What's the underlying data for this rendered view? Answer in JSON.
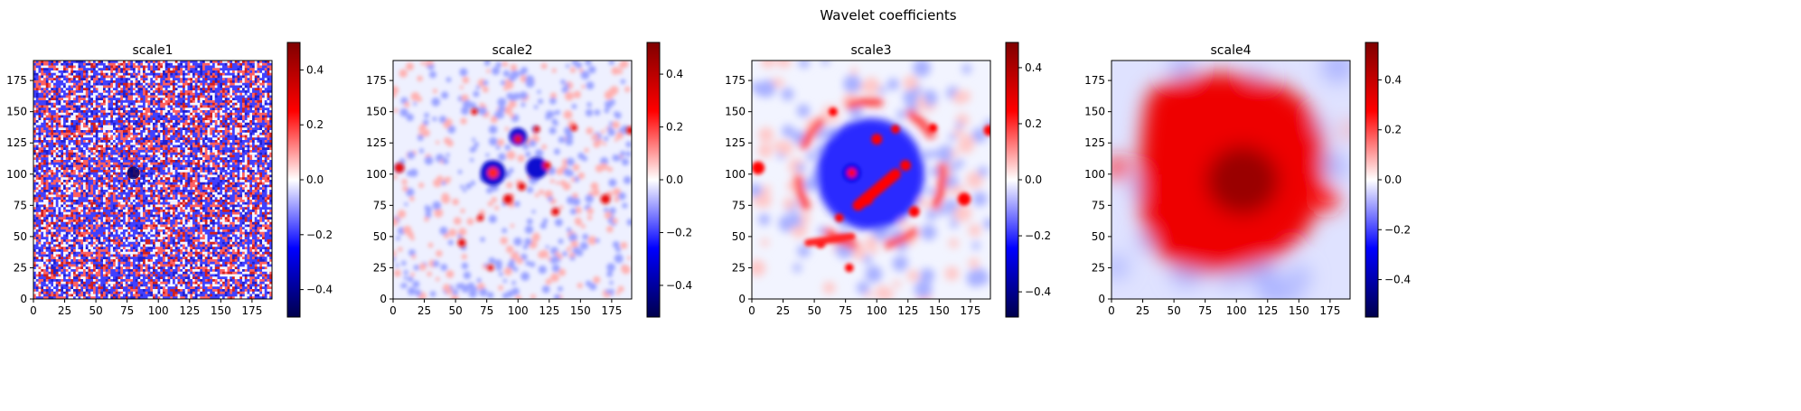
{
  "figure": {
    "title": "Wavelet coefficients"
  },
  "chart_data": [
    {
      "type": "heatmap",
      "title": "scale1",
      "xlim": [
        0,
        191
      ],
      "ylim": [
        0,
        191
      ],
      "xticks": [
        0,
        25,
        50,
        75,
        100,
        125,
        150,
        175
      ],
      "yticks": [
        0,
        25,
        50,
        75,
        100,
        125,
        150,
        175
      ],
      "colorbar": {
        "min": -0.5,
        "max": 0.5,
        "ticks": [
          -0.4,
          -0.2,
          0.0,
          0.2,
          0.4
        ],
        "tick_labels": [
          "−0.4",
          "−0.2",
          "0.0",
          "0.2",
          "0.4"
        ]
      },
      "colormap": [
        "#00004c",
        "#0000ff",
        "#ffffff",
        "#ff0000",
        "#7f0000"
      ]
    },
    {
      "type": "heatmap",
      "title": "scale2",
      "xlim": [
        0,
        191
      ],
      "ylim": [
        0,
        191
      ],
      "xticks": [
        0,
        25,
        50,
        75,
        100,
        125,
        150,
        175
      ],
      "yticks": [
        0,
        25,
        50,
        75,
        100,
        125,
        150,
        175
      ],
      "colorbar": {
        "min": -0.52,
        "max": 0.52,
        "ticks": [
          -0.4,
          -0.2,
          0.0,
          0.2,
          0.4
        ],
        "tick_labels": [
          "−0.4",
          "−0.2",
          "0.0",
          "0.2",
          "0.4"
        ]
      },
      "colormap": [
        "#00004c",
        "#0000ff",
        "#ffffff",
        "#ff0000",
        "#7f0000"
      ]
    },
    {
      "type": "heatmap",
      "title": "scale3",
      "xlim": [
        0,
        191
      ],
      "ylim": [
        0,
        191
      ],
      "xticks": [
        0,
        25,
        50,
        75,
        100,
        125,
        150,
        175
      ],
      "yticks": [
        0,
        25,
        50,
        75,
        100,
        125,
        150,
        175
      ],
      "colorbar": {
        "min": -0.49,
        "max": 0.49,
        "ticks": [
          -0.4,
          -0.2,
          0.0,
          0.2,
          0.4
        ],
        "tick_labels": [
          "−0.4",
          "−0.2",
          "0.0",
          "0.2",
          "0.4"
        ]
      },
      "colormap": [
        "#00004c",
        "#0000ff",
        "#ffffff",
        "#ff0000",
        "#7f0000"
      ]
    },
    {
      "type": "heatmap",
      "title": "scale4",
      "xlim": [
        0,
        191
      ],
      "ylim": [
        0,
        191
      ],
      "xticks": [
        0,
        25,
        50,
        75,
        100,
        125,
        150,
        175
      ],
      "yticks": [
        0,
        25,
        50,
        75,
        100,
        125,
        150,
        175
      ],
      "colorbar": {
        "min": -0.55,
        "max": 0.55,
        "ticks": [
          -0.4,
          -0.2,
          0.0,
          0.2,
          0.4
        ],
        "tick_labels": [
          "−0.4",
          "−0.2",
          "0.0",
          "0.2",
          "0.4"
        ]
      },
      "colormap": [
        "#00004c",
        "#0000ff",
        "#ffffff",
        "#ff0000",
        "#7f0000"
      ]
    }
  ]
}
